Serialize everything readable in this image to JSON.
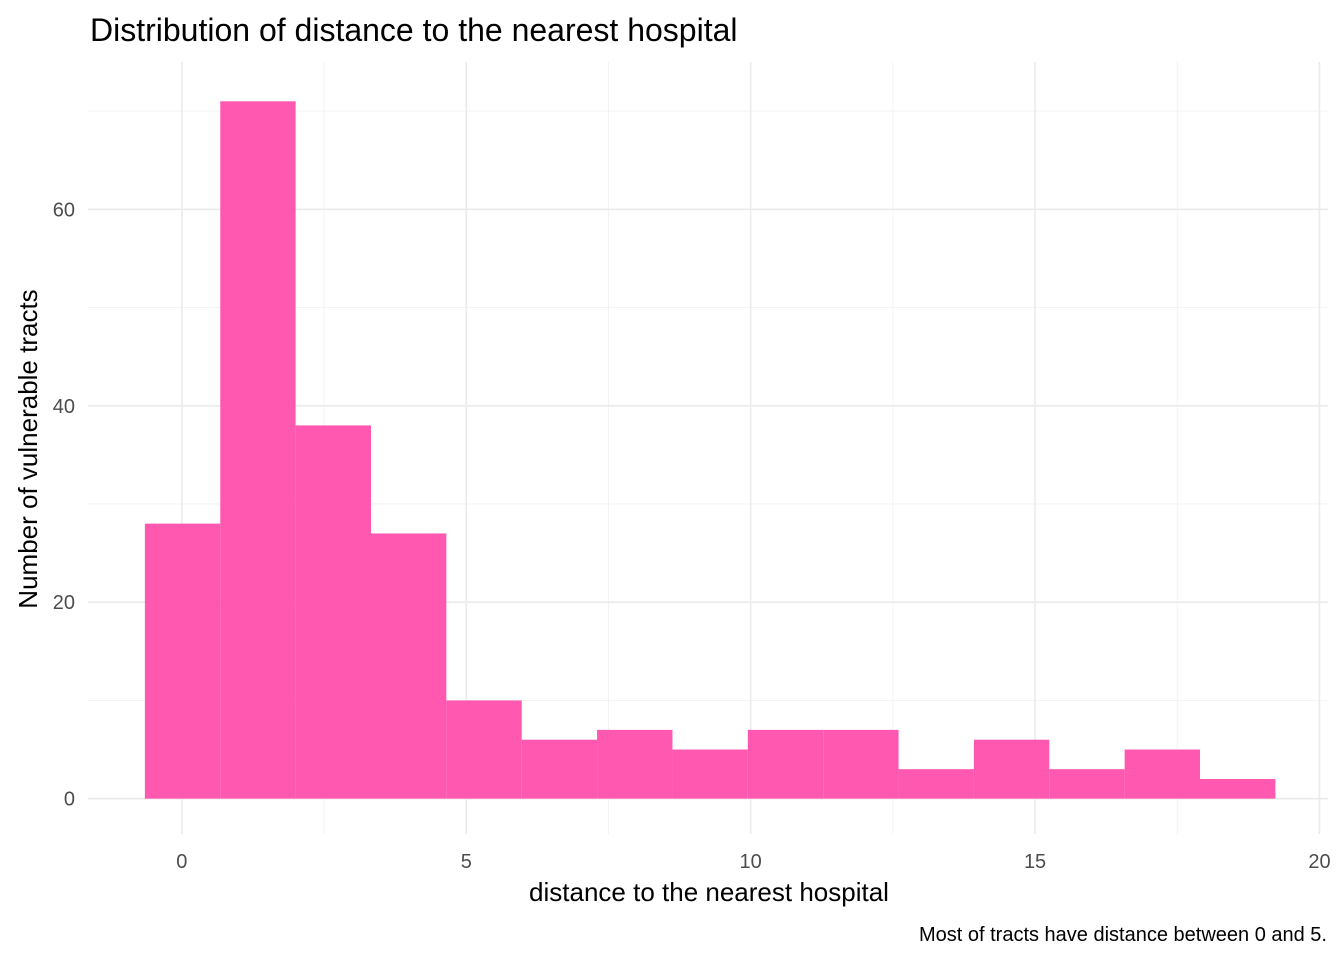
{
  "chart_data": {
    "type": "bar",
    "title": "Distribution of distance to the nearest hospital",
    "xlabel": "distance to the nearest hospital",
    "ylabel": "Number of vulnerable tracts",
    "caption": "Most of tracts have distance between 0 and 5.",
    "xlim": [
      -1.65,
      20.15
    ],
    "ylim": [
      -3.6,
      75
    ],
    "x_ticks": [
      0,
      5,
      10,
      15,
      20
    ],
    "y_ticks": [
      0,
      20,
      40,
      60
    ],
    "x_minor_ticks": [
      2.5,
      7.5,
      12.5,
      17.5
    ],
    "y_minor_ticks": [
      10,
      30,
      50,
      70
    ],
    "bin_width": 1.325,
    "bins": [
      {
        "x0": -0.65,
        "x1": 0.675,
        "count": 28
      },
      {
        "x0": 0.675,
        "x1": 2.0,
        "count": 71
      },
      {
        "x0": 2.0,
        "x1": 3.325,
        "count": 38
      },
      {
        "x0": 3.325,
        "x1": 4.65,
        "count": 27
      },
      {
        "x0": 4.65,
        "x1": 5.975,
        "count": 10
      },
      {
        "x0": 5.975,
        "x1": 7.3,
        "count": 6
      },
      {
        "x0": 7.3,
        "x1": 8.625,
        "count": 7
      },
      {
        "x0": 8.625,
        "x1": 9.95,
        "count": 5
      },
      {
        "x0": 9.95,
        "x1": 11.275,
        "count": 7
      },
      {
        "x0": 11.275,
        "x1": 12.6,
        "count": 7
      },
      {
        "x0": 12.6,
        "x1": 13.925,
        "count": 3
      },
      {
        "x0": 13.925,
        "x1": 15.25,
        "count": 6
      },
      {
        "x0": 15.25,
        "x1": 16.575,
        "count": 3
      },
      {
        "x0": 16.575,
        "x1": 17.9,
        "count": 5
      },
      {
        "x0": 17.9,
        "x1": 19.225,
        "count": 2
      }
    ],
    "fill_color": "#ff4fad",
    "grid": true,
    "legend": "none"
  }
}
